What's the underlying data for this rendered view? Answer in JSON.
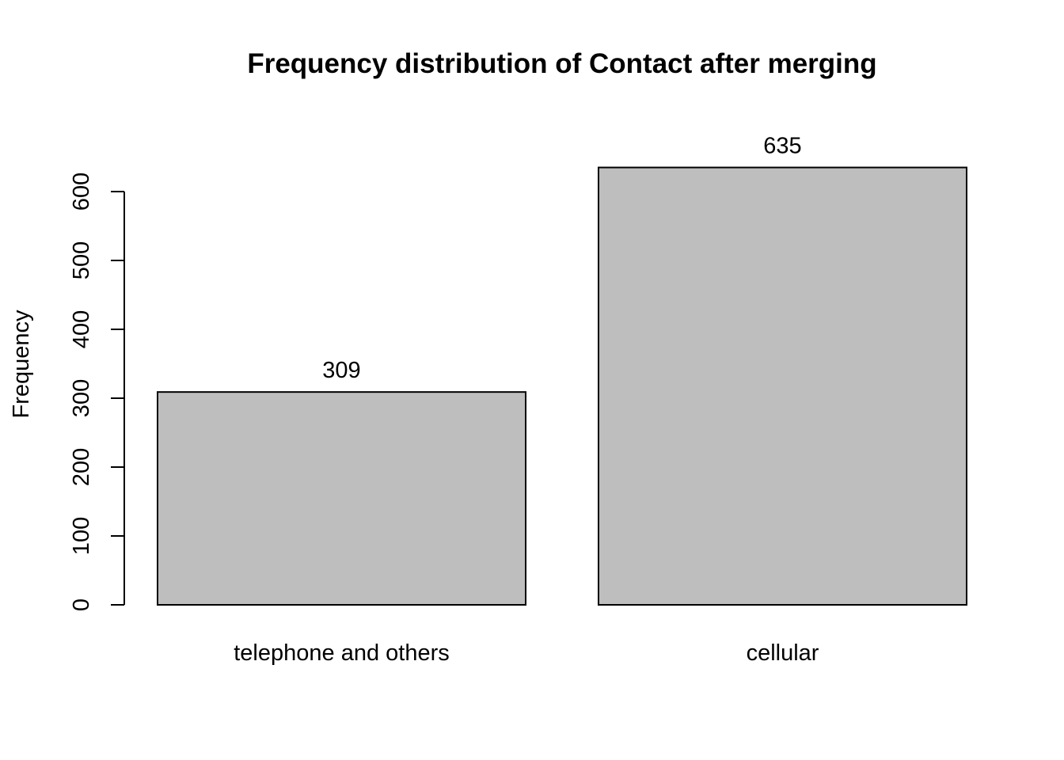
{
  "chart_data": {
    "type": "bar",
    "title": "Frequency distribution of Contact after merging",
    "xlabel": "",
    "ylabel": "Frequency",
    "categories": [
      "telephone and others",
      "cellular"
    ],
    "values": [
      309,
      635
    ],
    "value_labels": [
      "309",
      "635"
    ],
    "ylim": [
      0,
      600
    ],
    "yticks": [
      0,
      100,
      200,
      300,
      400,
      500,
      600
    ],
    "ytick_labels": [
      "0",
      "100",
      "200",
      "300",
      "400",
      "500",
      "600"
    ],
    "bar_color": "#bebebe",
    "grid": false,
    "legend": "none"
  }
}
